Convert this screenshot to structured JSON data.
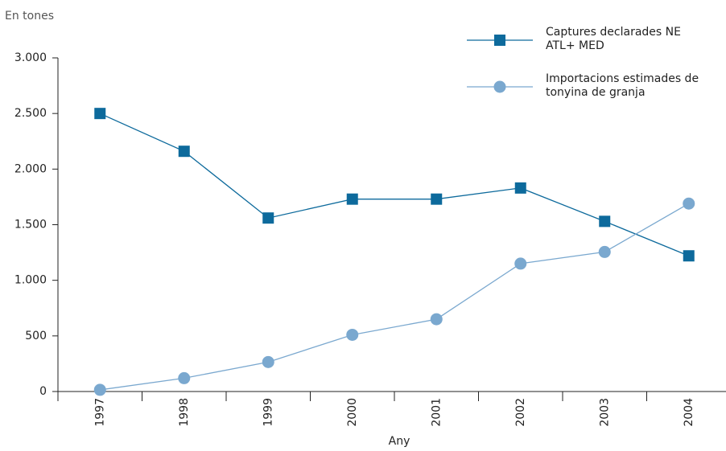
{
  "chart_data": {
    "type": "line",
    "y_label": "En tones",
    "x_label": "Any",
    "categories": [
      "1997",
      "1998",
      "1999",
      "2000",
      "2001",
      "2002",
      "2003",
      "2004"
    ],
    "series": [
      {
        "name": "Captures declarades NE ATL+ MED",
        "color": "#0d6a9c",
        "marker": "square",
        "values": [
          2500,
          2160,
          1560,
          1730,
          1730,
          1830,
          1530,
          1220
        ]
      },
      {
        "name": "Importacions estimades de tonyina de granja",
        "color": "#7aa8cf",
        "marker": "circle",
        "values": [
          15,
          120,
          265,
          510,
          650,
          1150,
          1255,
          1690
        ]
      }
    ],
    "ylim": [
      0,
      3000
    ],
    "yticks": [
      0,
      500,
      {
        "value": 1000,
        "label": "1.000"
      },
      {
        "value": 1500,
        "label": "1.500"
      },
      {
        "value": 2000,
        "label": "2.000"
      },
      {
        "value": 2500,
        "label": "2.500"
      },
      {
        "value": 3000,
        "label": "3.000"
      }
    ],
    "grid": false
  }
}
